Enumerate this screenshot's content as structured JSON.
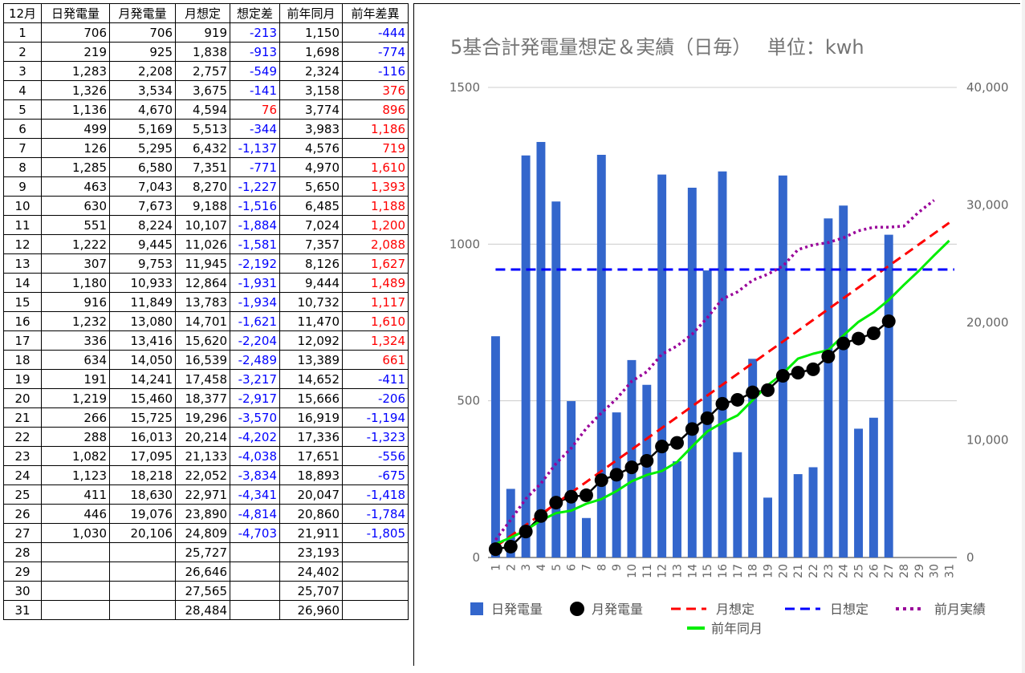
{
  "table": {
    "headers": [
      "12月",
      "日発電量",
      "月発電量",
      "月想定",
      "想定差",
      "前年同月",
      "前年差異"
    ],
    "rows": [
      [
        "1",
        "706",
        "706",
        "919",
        "-213",
        "1,150",
        "-444"
      ],
      [
        "2",
        "219",
        "925",
        "1,838",
        "-913",
        "1,698",
        "-774"
      ],
      [
        "3",
        "1,283",
        "2,208",
        "2,757",
        "-549",
        "2,324",
        "-116"
      ],
      [
        "4",
        "1,326",
        "3,534",
        "3,675",
        "-141",
        "3,158",
        "376"
      ],
      [
        "5",
        "1,136",
        "4,670",
        "4,594",
        "76",
        "3,774",
        "896"
      ],
      [
        "6",
        "499",
        "5,169",
        "5,513",
        "-344",
        "3,983",
        "1,186"
      ],
      [
        "7",
        "126",
        "5,295",
        "6,432",
        "-1,137",
        "4,576",
        "719"
      ],
      [
        "8",
        "1,285",
        "6,580",
        "7,351",
        "-771",
        "4,970",
        "1,610"
      ],
      [
        "9",
        "463",
        "7,043",
        "8,270",
        "-1,227",
        "5,650",
        "1,393"
      ],
      [
        "10",
        "630",
        "7,673",
        "9,188",
        "-1,516",
        "6,485",
        "1,188"
      ],
      [
        "11",
        "551",
        "8,224",
        "10,107",
        "-1,884",
        "7,024",
        "1,200"
      ],
      [
        "12",
        "1,222",
        "9,445",
        "11,026",
        "-1,581",
        "7,357",
        "2,088"
      ],
      [
        "13",
        "307",
        "9,753",
        "11,945",
        "-2,192",
        "8,126",
        "1,627"
      ],
      [
        "14",
        "1,180",
        "10,933",
        "12,864",
        "-1,931",
        "9,444",
        "1,489"
      ],
      [
        "15",
        "916",
        "11,849",
        "13,783",
        "-1,934",
        "10,732",
        "1,117"
      ],
      [
        "16",
        "1,232",
        "13,080",
        "14,701",
        "-1,621",
        "11,470",
        "1,610"
      ],
      [
        "17",
        "336",
        "13,416",
        "15,620",
        "-2,204",
        "12,092",
        "1,324"
      ],
      [
        "18",
        "634",
        "14,050",
        "16,539",
        "-2,489",
        "13,389",
        "661"
      ],
      [
        "19",
        "191",
        "14,241",
        "17,458",
        "-3,217",
        "14,652",
        "-411"
      ],
      [
        "20",
        "1,219",
        "15,460",
        "18,377",
        "-2,917",
        "15,666",
        "-206"
      ],
      [
        "21",
        "266",
        "15,725",
        "19,296",
        "-3,570",
        "16,919",
        "-1,194"
      ],
      [
        "22",
        "288",
        "16,013",
        "20,214",
        "-4,202",
        "17,336",
        "-1,323"
      ],
      [
        "23",
        "1,082",
        "17,095",
        "21,133",
        "-4,038",
        "17,651",
        "-556"
      ],
      [
        "24",
        "1,123",
        "18,218",
        "22,052",
        "-3,834",
        "18,893",
        "-675"
      ],
      [
        "25",
        "411",
        "18,630",
        "22,971",
        "-4,341",
        "20,047",
        "-1,418"
      ],
      [
        "26",
        "446",
        "19,076",
        "23,890",
        "-4,814",
        "20,860",
        "-1,784"
      ],
      [
        "27",
        "1,030",
        "20,106",
        "24,809",
        "-4,703",
        "21,911",
        "-1,805"
      ],
      [
        "28",
        "",
        "",
        "25,727",
        "",
        "23,193",
        ""
      ],
      [
        "29",
        "",
        "",
        "26,646",
        "",
        "24,402",
        ""
      ],
      [
        "30",
        "",
        "",
        "27,565",
        "",
        "25,707",
        ""
      ],
      [
        "31",
        "",
        "",
        "28,484",
        "",
        "26,960",
        ""
      ]
    ]
  },
  "colors": {
    "bar": "#3366cc",
    "monthly_actual": "#000000",
    "monthly_plan": "#ff0000",
    "daily_plan": "#0000ff",
    "prev_month_actual": "#990099",
    "prev_year": "#00ee00",
    "negative_text": "#0000ff",
    "positive_text": "#ff0000"
  },
  "chart_data": {
    "type": "bar",
    "title": "5基合計発電量想定＆実績（日毎）　 単位：kwh",
    "categories": [
      "1",
      "2",
      "3",
      "4",
      "5",
      "6",
      "7",
      "8",
      "9",
      "10",
      "11",
      "12",
      "13",
      "14",
      "15",
      "16",
      "17",
      "18",
      "19",
      "20",
      "21",
      "22",
      "23",
      "24",
      "25",
      "26",
      "27",
      "28",
      "29",
      "30",
      "31"
    ],
    "left_axis": {
      "min": 0,
      "max": 1500,
      "ticks": [
        "0",
        "500",
        "1000",
        "1500"
      ]
    },
    "right_axis": {
      "min": 0,
      "max": 40000,
      "ticks": [
        "0",
        "10,000",
        "20,000",
        "30,000",
        "40,000"
      ]
    },
    "grid": true,
    "legend_position": "bottom",
    "series": [
      {
        "name": "日発電量",
        "type": "bar",
        "axis": "left",
        "values": [
          706,
          219,
          1283,
          1326,
          1136,
          499,
          126,
          1285,
          463,
          630,
          551,
          1222,
          307,
          1180,
          916,
          1232,
          336,
          634,
          191,
          1219,
          266,
          288,
          1082,
          1123,
          411,
          446,
          1030,
          null,
          null,
          null,
          null
        ]
      },
      {
        "name": "月発電量",
        "type": "line-markers",
        "axis": "right",
        "values": [
          706,
          925,
          2208,
          3534,
          4670,
          5169,
          5295,
          6580,
          7043,
          7673,
          8224,
          9445,
          9753,
          10933,
          11849,
          13080,
          13416,
          14050,
          14241,
          15460,
          15725,
          16013,
          17095,
          18218,
          18630,
          19076,
          20106,
          null,
          null,
          null,
          null
        ]
      },
      {
        "name": "月想定",
        "type": "dashed-line",
        "axis": "right",
        "values": [
          919,
          1838,
          2757,
          3675,
          4594,
          5513,
          6432,
          7351,
          8270,
          9188,
          10107,
          11026,
          11945,
          12864,
          13783,
          14701,
          15620,
          16539,
          17458,
          18377,
          19296,
          20214,
          21133,
          22052,
          22971,
          23890,
          24809,
          25727,
          26646,
          27565,
          28484
        ]
      },
      {
        "name": "日想定",
        "type": "dashed-line",
        "axis": "left",
        "values": [
          919,
          919,
          919,
          919,
          919,
          919,
          919,
          919,
          919,
          919,
          919,
          919,
          919,
          919,
          919,
          919,
          919,
          919,
          919,
          919,
          919,
          919,
          919,
          919,
          919,
          919,
          919,
          919,
          919,
          919,
          919
        ]
      },
      {
        "name": "前月実績",
        "type": "dotted-line",
        "axis": "right",
        "values": [
          1500,
          3200,
          5000,
          6300,
          8000,
          9300,
          11000,
          12300,
          13500,
          15000,
          15800,
          17300,
          18000,
          19000,
          20400,
          22000,
          22600,
          23600,
          24100,
          24800,
          26200,
          26600,
          26800,
          27200,
          27800,
          28100,
          28100,
          28200,
          29400,
          30400,
          null
        ]
      },
      {
        "name": "前年同月",
        "type": "line",
        "axis": "right",
        "values": [
          1150,
          1698,
          2324,
          3158,
          3774,
          3983,
          4576,
          4970,
          5650,
          6485,
          7024,
          7357,
          8126,
          9444,
          10732,
          11470,
          12092,
          13389,
          14652,
          15666,
          16919,
          17336,
          17651,
          18893,
          20047,
          20860,
          21911,
          23193,
          24402,
          25707,
          26960
        ]
      }
    ]
  }
}
